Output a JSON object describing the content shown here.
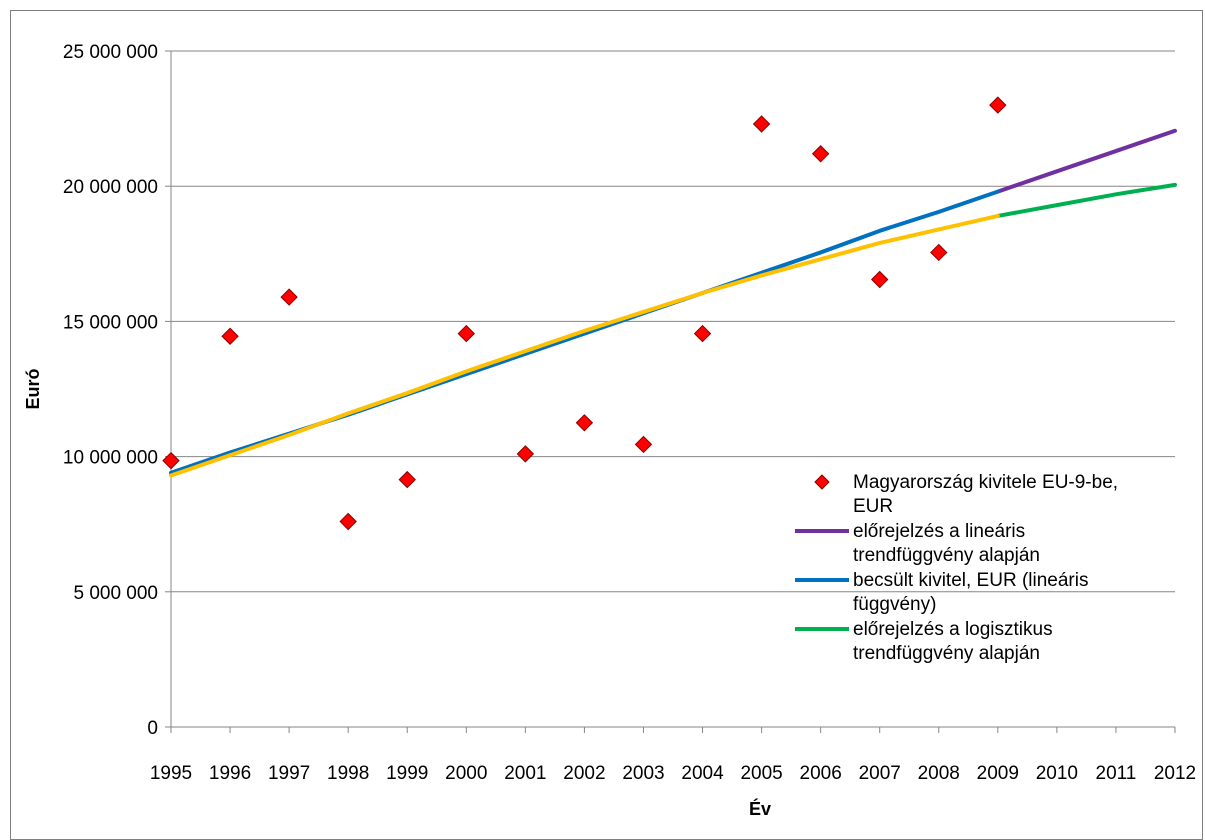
{
  "chart_data": {
    "type": "line",
    "title": "",
    "xlabel": "Év",
    "ylabel": "Euró",
    "ylim": [
      0,
      25000000
    ],
    "y_ticks": [
      0,
      5000000,
      10000000,
      15000000,
      20000000,
      25000000
    ],
    "y_tick_labels": [
      "0",
      "5 000 000",
      "10 000 000",
      "15 000 000",
      "20 000 000",
      "25 000 000"
    ],
    "x_ticks": [
      "1995",
      "1996",
      "1997",
      "1998",
      "1999",
      "2000",
      "2001",
      "2002",
      "2003",
      "2004",
      "2005",
      "2006",
      "2007",
      "2008",
      "2009",
      "2010",
      "2011",
      "2012"
    ],
    "grid": "horizontal",
    "legend_position": "right",
    "series": [
      {
        "name": "Magyarország kivitele EU-9-be, EUR",
        "type": "scatter",
        "color": "#ff0000",
        "marker": "diamond",
        "x": [
          1995,
          1996,
          1997,
          1998,
          1999,
          2000,
          2001,
          2002,
          2003,
          2004,
          2005,
          2006,
          2007,
          2008,
          2009
        ],
        "values": [
          9850000,
          14450000,
          15900000,
          7600000,
          9150000,
          14550000,
          10100000,
          11250000,
          10450000,
          14550000,
          22300000,
          21200000,
          16550000,
          17550000,
          23000000
        ]
      },
      {
        "name": "előrejelzés a lineáris trendfüggvény alapján",
        "type": "line",
        "color": "#7030a0",
        "x": [
          2009,
          2010,
          2011,
          2012
        ],
        "values": [
          19800000,
          20550000,
          21300000,
          22050000
        ]
      },
      {
        "name": "becsült kivitel, EUR (lineáris függvény)",
        "type": "line",
        "color": "#0070c0",
        "x": [
          1995,
          1996,
          1997,
          1998,
          1999,
          2000,
          2001,
          2002,
          2003,
          2004,
          2005,
          2006,
          2007,
          2008,
          2009
        ],
        "values": [
          9400000,
          10150000,
          10850000,
          11550000,
          12300000,
          13050000,
          13800000,
          14550000,
          15300000,
          16050000,
          16800000,
          17550000,
          18350000,
          19050000,
          19800000
        ]
      },
      {
        "name": "előrejelzés a logisztikus trendfüggvény alapján",
        "type": "line",
        "color": "#00b050",
        "x": [
          2009,
          2010,
          2011,
          2012
        ],
        "values": [
          18900000,
          19300000,
          19700000,
          20050000
        ]
      },
      {
        "type": "line",
        "color": "#ffc000",
        "in_legend": false,
        "x": [
          1995,
          1996,
          1997,
          1998,
          1999,
          2000,
          2001,
          2002,
          2003,
          2004,
          2005,
          2006,
          2007,
          2008,
          2009
        ],
        "values": [
          9300000,
          10050000,
          10800000,
          11600000,
          12350000,
          13150000,
          13900000,
          14650000,
          15350000,
          16050000,
          16700000,
          17300000,
          17900000,
          18400000,
          18900000
        ]
      }
    ],
    "legend": [
      {
        "lines": [
          "Magyarország kivitele EU-9-be,",
          "EUR"
        ],
        "color": "#ff0000",
        "kind": "marker"
      },
      {
        "lines": [
          "előrejelzés a lineáris",
          "trendfüggvény alapján"
        ],
        "color": "#7030a0",
        "kind": "line"
      },
      {
        "lines": [
          "becsült kivitel, EUR (lineáris",
          "függvény)"
        ],
        "color": "#0070c0",
        "kind": "line"
      },
      {
        "lines": [
          "előrejelzés a logisztikus",
          "trendfüggvény alapján"
        ],
        "color": "#00b050",
        "kind": "line"
      }
    ]
  }
}
